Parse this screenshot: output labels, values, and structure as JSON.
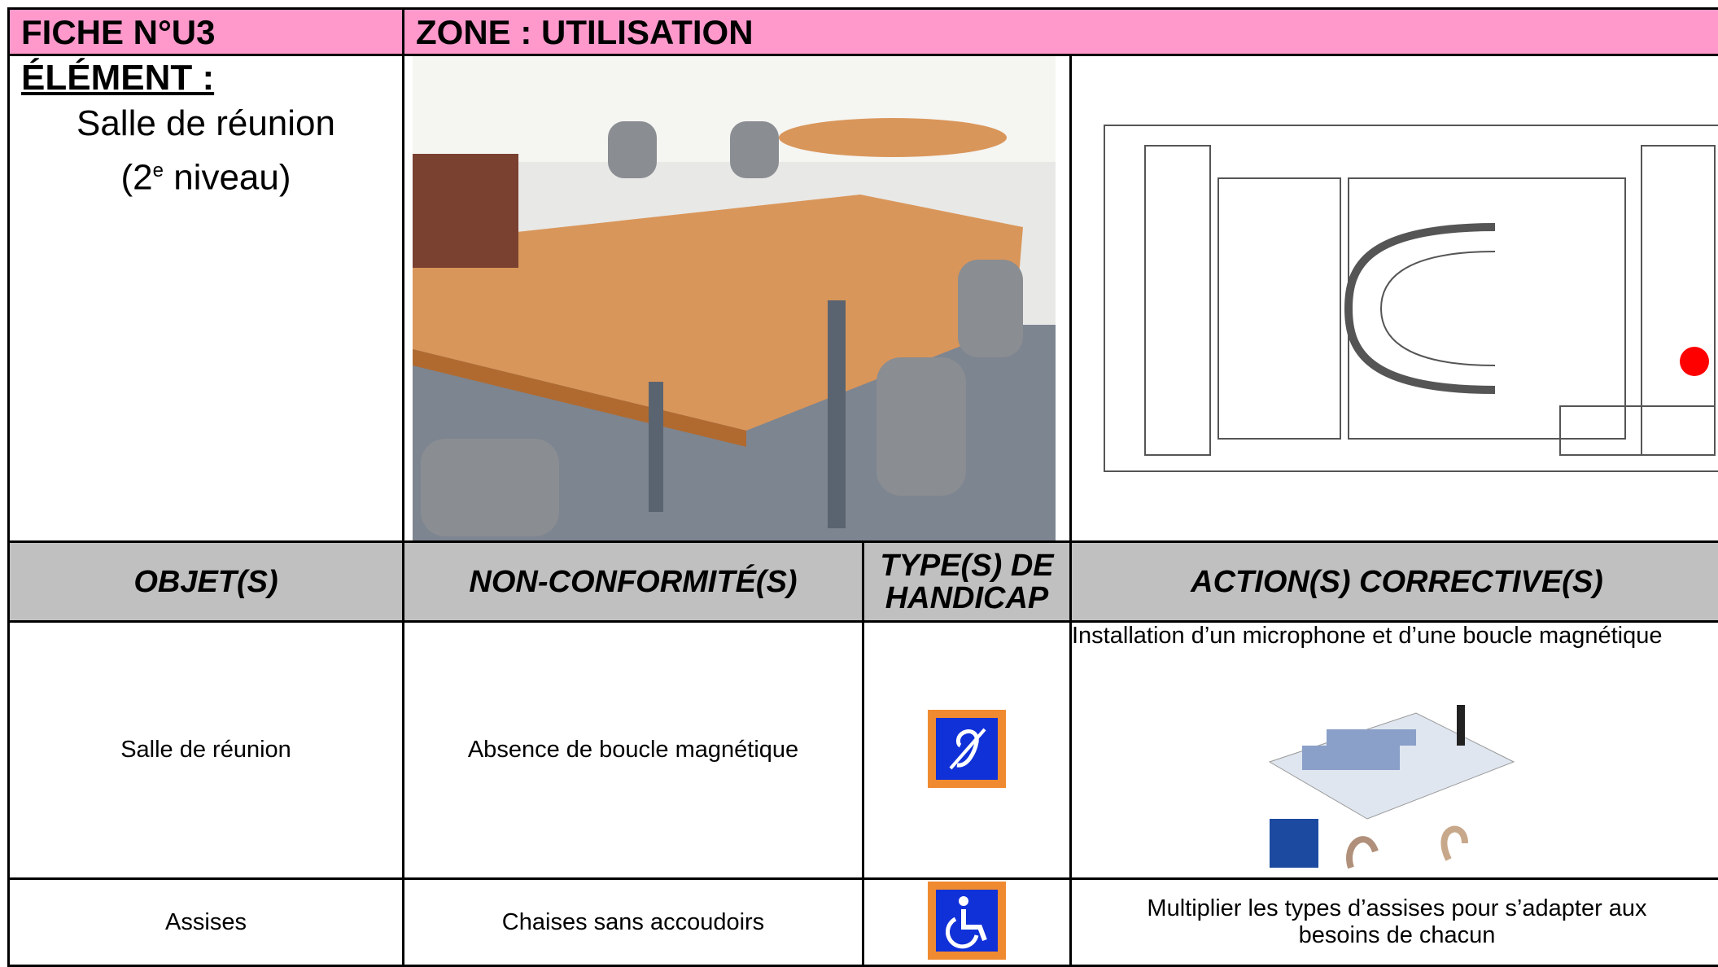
{
  "header": {
    "fiche": "FICHE N°U3",
    "zone": "ZONE : UTILISATION"
  },
  "element": {
    "label": "ÉLÉMENT :",
    "name": "Salle de réunion",
    "level_open": "(2",
    "level_sup": "e",
    "level_close": " niveau)"
  },
  "table": {
    "columns": [
      "OBJET(S)",
      "NON-CONFORMITÉ(S)",
      "TYPE(S) DE HANDICAP",
      "ACTION(S) CORRECTIVE(S)"
    ],
    "rows": [
      [
        "Salle de réunion",
        "Absence de boucle magnétique",
        "Installation d’un microphone et d’une boucle magnétique"
      ],
      [
        "Assises",
        "Chaises sans accoudoirs",
        "Multiplier les types d’assises pour s’adapter aux besoins de chacun"
      ]
    ]
  }
}
